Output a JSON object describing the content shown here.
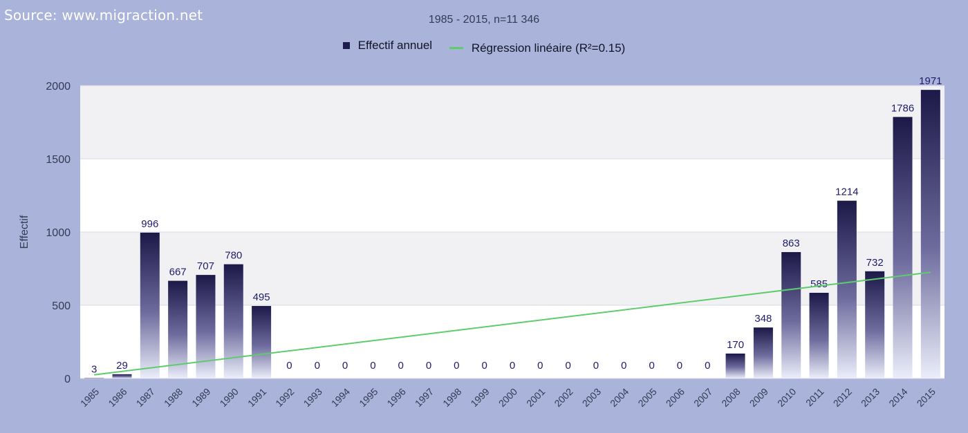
{
  "header": {
    "source": "Source: www.migraction.net",
    "subtitle": "1985 - 2015, n=11 346"
  },
  "legend": {
    "position": "top-center",
    "items": [
      {
        "label": "Effectif annuel",
        "kind": "bar",
        "color": "#1e1b4e"
      },
      {
        "label": "Régression linéaire (R²=0.15)",
        "kind": "line",
        "color": "#5ecb6c"
      }
    ]
  },
  "chart_data": {
    "type": "bar",
    "categories": [
      "1985",
      "1986",
      "1987",
      "1988",
      "1989",
      "1990",
      "1991",
      "1992",
      "1993",
      "1994",
      "1995",
      "1996",
      "1997",
      "1998",
      "1999",
      "2000",
      "2001",
      "2002",
      "2003",
      "2004",
      "2005",
      "2006",
      "2007",
      "2008",
      "2009",
      "2010",
      "2011",
      "2012",
      "2013",
      "2014",
      "2015"
    ],
    "series": [
      {
        "name": "Effectif annuel",
        "values": [
          3,
          29,
          996,
          667,
          707,
          780,
          495,
          0,
          0,
          0,
          0,
          0,
          0,
          0,
          0,
          0,
          0,
          0,
          0,
          0,
          0,
          0,
          0,
          170,
          348,
          863,
          585,
          1214,
          732,
          1786,
          1971
        ],
        "labels": [
          "3",
          "29",
          "996",
          "667",
          "707",
          "780",
          "495",
          "0",
          "0",
          "0",
          "0",
          "0",
          "0",
          "0",
          "0",
          "0",
          "0",
          "0",
          "0",
          "0",
          "0",
          "0",
          "0",
          "170",
          "348",
          "863",
          "585",
          "1214",
          "732",
          "1786",
          "1971"
        ]
      }
    ],
    "regression": {
      "name": "Régression linéaire (R²=0.15)",
      "start": {
        "x": "1985",
        "y": 25
      },
      "end": {
        "x": "2015",
        "y": 725
      }
    },
    "title": "",
    "xlabel": "",
    "ylabel": "Effectif",
    "ylim": [
      0,
      2000
    ],
    "yticks": [
      0,
      500,
      1000,
      1500,
      2000
    ],
    "grid": true,
    "colors": {
      "bar_top": "#1c1848",
      "bar_bottom": "#ebeefa",
      "regression": "#5ecb6c",
      "plot_background": "#ffffff",
      "band_background": "#f1f1f4"
    }
  }
}
